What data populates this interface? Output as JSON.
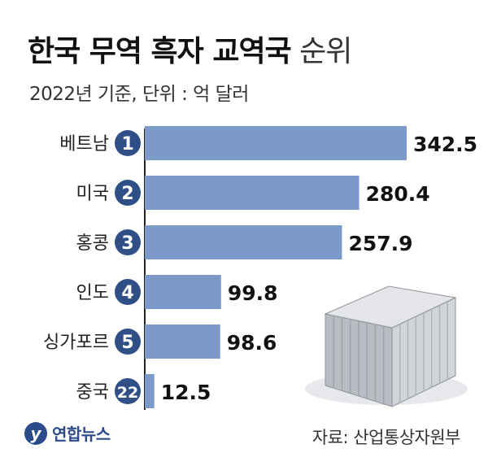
{
  "title_bold": "한국 무역 흑자 교역국",
  "title_light": "순위",
  "subtitle": "2022년 기준, 단위 : 억 달러",
  "source": "자료: 산업통상자원부",
  "logo_text": "연합뉴스",
  "colors": {
    "bar": "#7b9ac9",
    "badge": "#2f4f86",
    "axis": "#222222"
  },
  "chart_data": {
    "type": "bar",
    "orientation": "horizontal",
    "title": "한국 무역 흑자 교역국 순위",
    "subtitle": "2022년 기준, 단위 : 억 달러",
    "categories": [
      "베트남",
      "미국",
      "홍콩",
      "인도",
      "싱가포르",
      "중국"
    ],
    "ranks": [
      "1",
      "2",
      "3",
      "4",
      "5",
      "22"
    ],
    "values": [
      342.5,
      280.4,
      257.9,
      99.8,
      98.6,
      12.5
    ],
    "value_labels": [
      "342.5",
      "280.4",
      "257.9",
      "99.8",
      "98.6",
      "12.5"
    ],
    "xlim": [
      0,
      342.5
    ],
    "grid": false,
    "legend": "none"
  }
}
